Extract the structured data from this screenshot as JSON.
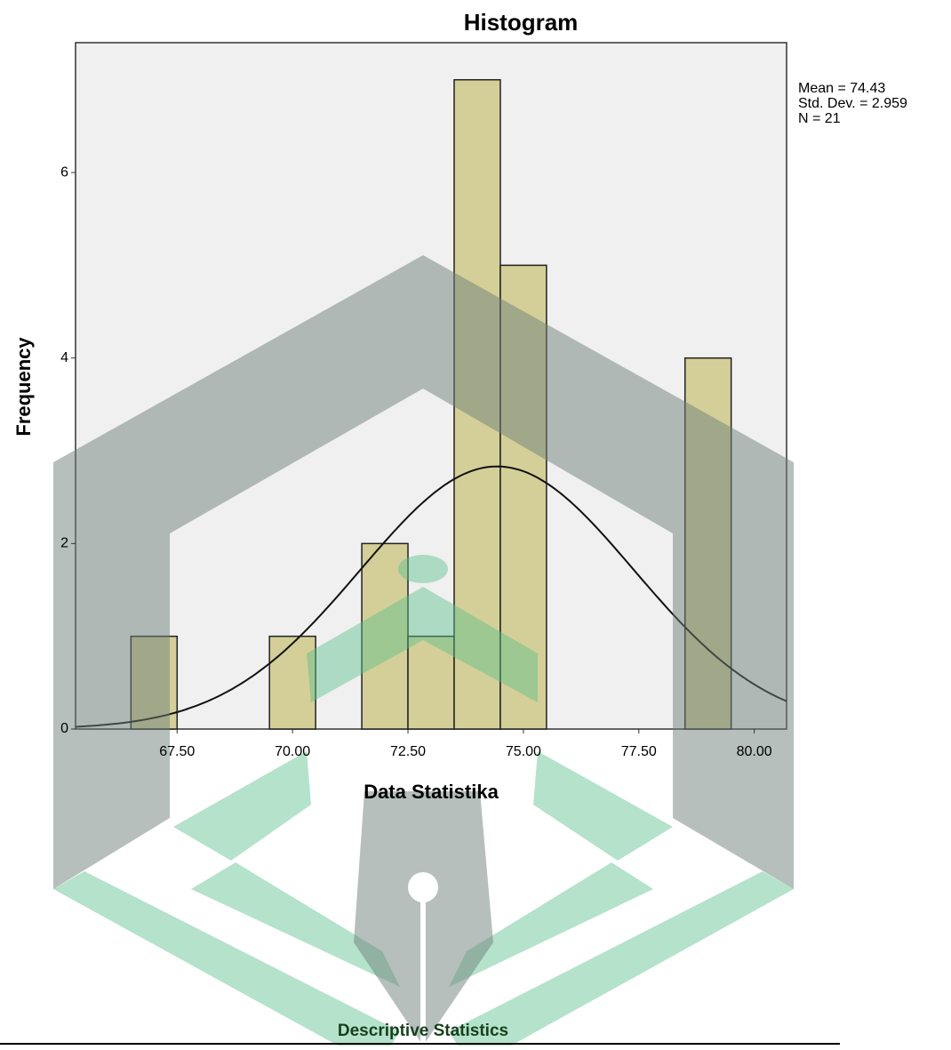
{
  "chart_data": {
    "type": "histogram",
    "title": "Histogram",
    "x_label": "Data Statistika",
    "y_label": "Frequency",
    "bins": [
      66.5,
      67.5,
      68.5,
      69.5,
      70.5,
      71.5,
      72.5,
      73.5,
      74.5,
      75.5,
      76.5,
      77.5,
      78.5,
      79.5
    ],
    "values": [
      1,
      0,
      0,
      1,
      0,
      2,
      1,
      7,
      5,
      0,
      0,
      0,
      4
    ],
    "color": "#d4cf98",
    "xlim": [
      65.3,
      80.7
    ],
    "xticks": [
      {
        "value": 67.5,
        "label": "67.50"
      },
      {
        "value": 70,
        "label": "70.00"
      },
      {
        "value": 72.5,
        "label": "72.50"
      },
      {
        "value": 75,
        "label": "75.00"
      },
      {
        "value": 77.5,
        "label": "77.50"
      },
      {
        "value": 80,
        "label": "80.00"
      }
    ],
    "ylim": [
      0,
      7.4
    ],
    "yticks": [
      0,
      2,
      4,
      6
    ],
    "stats": {
      "mean": {
        "value": 74.43,
        "label": "Mean = 74.43"
      },
      "sd": {
        "value": 2.959,
        "label": "Std. Dev. = 2.959"
      },
      "n": {
        "value": 21,
        "label": "N = 21"
      }
    }
  },
  "table_title": "Descriptive Statistics"
}
